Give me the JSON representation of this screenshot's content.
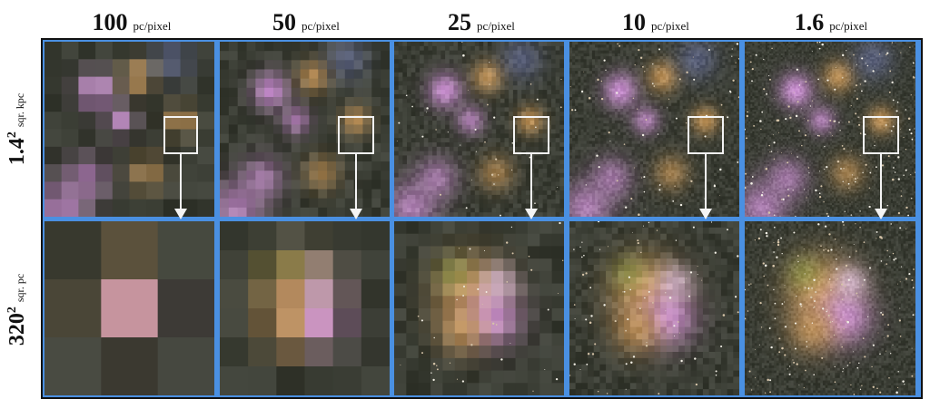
{
  "columns": [
    {
      "value": "100",
      "unit": "pc/pixel"
    },
    {
      "value": "50",
      "unit": "pc/pixel"
    },
    {
      "value": "25",
      "unit": "pc/pixel"
    },
    {
      "value": "10",
      "unit": "pc/pixel"
    },
    {
      "value": "1.6",
      "unit": "pc/pixel"
    }
  ],
  "rows": [
    {
      "value": "1.4",
      "exponent": "2",
      "unit": "sqr. kpc"
    },
    {
      "value": "320",
      "exponent": "2",
      "unit": "sqr. pc"
    }
  ],
  "colors": {
    "frame_blue": "#4a90e2",
    "nebula_pink": "#c88fcf",
    "nebula_orange": "#c9995b",
    "background_dark": "#3a3d34"
  }
}
